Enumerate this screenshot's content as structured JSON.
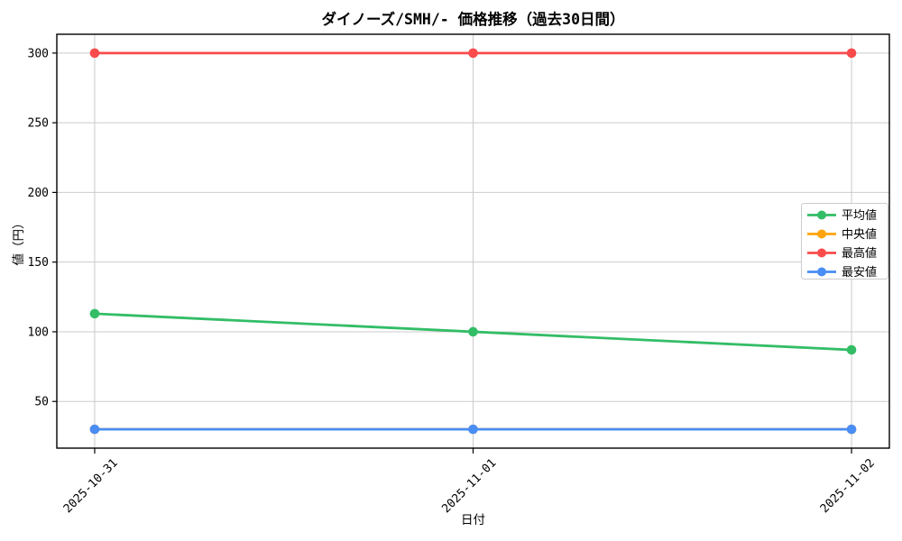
{
  "chart_data": {
    "type": "line",
    "title": "ダイノーズ/SMH/- 価格推移（過去30日間）",
    "xlabel": "日付",
    "ylabel": "値（円）",
    "categories": [
      "2025-10-31",
      "2025-11-01",
      "2025-11-02"
    ],
    "series": [
      {
        "key": "average",
        "name": "平均値",
        "color": "#33bd66",
        "values": [
          113,
          100,
          87
        ]
      },
      {
        "key": "median",
        "name": "中央値",
        "color": "#ffa40d",
        "values": [
          30,
          30,
          30
        ]
      },
      {
        "key": "max",
        "name": "最高値",
        "color": "#f94b4b",
        "values": [
          300,
          300,
          300
        ]
      },
      {
        "key": "min",
        "name": "最安値",
        "color": "#4a8df4",
        "values": [
          30,
          30,
          30
        ]
      }
    ],
    "yticks": [
      50,
      100,
      150,
      200,
      250,
      300
    ],
    "ylim": [
      16.5,
      313.5
    ],
    "grid": true,
    "legend_position": "center-right",
    "colors": {
      "grid": "#cbcbcb",
      "spine": "#000000",
      "legend_border": "#cccccc",
      "legend_background": "#ffffff"
    }
  }
}
